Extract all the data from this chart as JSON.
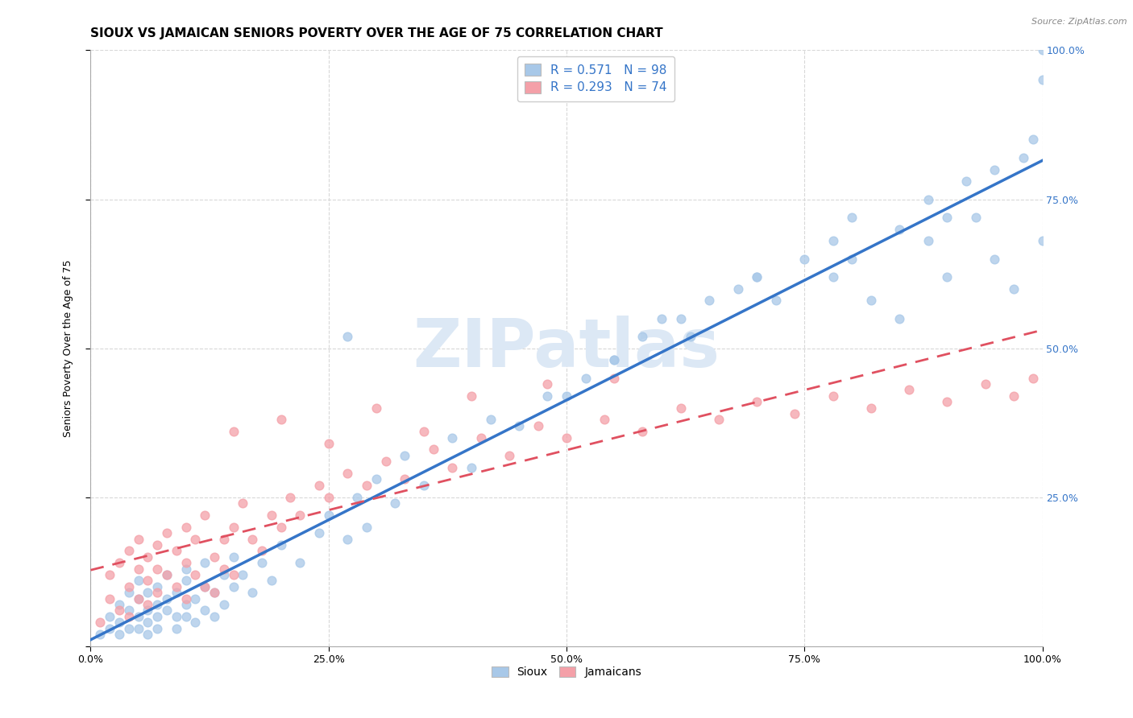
{
  "title": "SIOUX VS JAMAICAN SENIORS POVERTY OVER THE AGE OF 75 CORRELATION CHART",
  "source": "Source: ZipAtlas.com",
  "ylabel": "Seniors Poverty Over the Age of 75",
  "xlim": [
    0.0,
    1.0
  ],
  "ylim": [
    0.0,
    1.0
  ],
  "xtick_labels": [
    "0.0%",
    "25.0%",
    "50.0%",
    "75.0%",
    "100.0%"
  ],
  "xtick_positions": [
    0.0,
    0.25,
    0.5,
    0.75,
    1.0
  ],
  "right_ytick_labels": [
    "100.0%",
    "75.0%",
    "50.0%",
    "25.0%",
    ""
  ],
  "right_ytick_positions": [
    1.0,
    0.75,
    0.5,
    0.25,
    0.0
  ],
  "sioux_color": "#a8c8e8",
  "jamaican_color": "#f4a0a8",
  "sioux_line_color": "#3575c8",
  "jamaican_line_color": "#e05060",
  "watermark_text": "ZIPatlas",
  "watermark_color": "#dce8f5",
  "legend_r_sioux": "R = 0.571",
  "legend_n_sioux": "N = 98",
  "legend_r_jamaican": "R = 0.293",
  "legend_n_jamaican": "N = 74",
  "legend_color_r": "#3575c8",
  "legend_color_n": "#e05060",
  "legend_color_r2": "#e05060",
  "legend_color_n2": "#e05060",
  "sioux_scatter_x": [
    0.01,
    0.02,
    0.02,
    0.03,
    0.03,
    0.03,
    0.04,
    0.04,
    0.04,
    0.05,
    0.05,
    0.05,
    0.05,
    0.06,
    0.06,
    0.06,
    0.06,
    0.07,
    0.07,
    0.07,
    0.07,
    0.08,
    0.08,
    0.08,
    0.09,
    0.09,
    0.09,
    0.1,
    0.1,
    0.1,
    0.1,
    0.11,
    0.11,
    0.12,
    0.12,
    0.12,
    0.13,
    0.13,
    0.14,
    0.14,
    0.15,
    0.15,
    0.16,
    0.17,
    0.18,
    0.19,
    0.2,
    0.22,
    0.24,
    0.25,
    0.27,
    0.28,
    0.29,
    0.3,
    0.32,
    0.33,
    0.35,
    0.38,
    0.4,
    0.27,
    0.45,
    0.5,
    0.52,
    0.55,
    0.58,
    0.62,
    0.65,
    0.68,
    0.7,
    0.75,
    0.78,
    0.8,
    0.82,
    0.85,
    0.88,
    0.9,
    0.92,
    0.95,
    0.97,
    0.98,
    0.99,
    1.0,
    1.0,
    0.6,
    0.7,
    0.8,
    0.85,
    0.9,
    0.95,
    1.0,
    0.42,
    0.48,
    0.55,
    0.63,
    0.72,
    0.78,
    0.88,
    0.93
  ],
  "sioux_scatter_y": [
    0.02,
    0.05,
    0.03,
    0.04,
    0.07,
    0.02,
    0.06,
    0.03,
    0.09,
    0.05,
    0.08,
    0.03,
    0.11,
    0.06,
    0.04,
    0.09,
    0.02,
    0.07,
    0.05,
    0.1,
    0.03,
    0.08,
    0.06,
    0.12,
    0.05,
    0.09,
    0.03,
    0.07,
    0.11,
    0.05,
    0.13,
    0.08,
    0.04,
    0.1,
    0.06,
    0.14,
    0.09,
    0.05,
    0.12,
    0.07,
    0.1,
    0.15,
    0.12,
    0.09,
    0.14,
    0.11,
    0.17,
    0.14,
    0.19,
    0.22,
    0.18,
    0.25,
    0.2,
    0.28,
    0.24,
    0.32,
    0.27,
    0.35,
    0.3,
    0.52,
    0.37,
    0.42,
    0.45,
    0.48,
    0.52,
    0.55,
    0.58,
    0.6,
    0.62,
    0.65,
    0.68,
    0.72,
    0.58,
    0.7,
    0.75,
    0.72,
    0.78,
    0.8,
    0.6,
    0.82,
    0.85,
    0.95,
    1.0,
    0.55,
    0.62,
    0.65,
    0.55,
    0.62,
    0.65,
    0.68,
    0.38,
    0.42,
    0.48,
    0.52,
    0.58,
    0.62,
    0.68,
    0.72
  ],
  "jamaican_scatter_x": [
    0.01,
    0.02,
    0.02,
    0.03,
    0.03,
    0.04,
    0.04,
    0.04,
    0.05,
    0.05,
    0.05,
    0.06,
    0.06,
    0.06,
    0.07,
    0.07,
    0.07,
    0.08,
    0.08,
    0.09,
    0.09,
    0.1,
    0.1,
    0.1,
    0.11,
    0.11,
    0.12,
    0.12,
    0.13,
    0.13,
    0.14,
    0.14,
    0.15,
    0.15,
    0.16,
    0.17,
    0.18,
    0.19,
    0.2,
    0.21,
    0.22,
    0.24,
    0.25,
    0.27,
    0.29,
    0.31,
    0.33,
    0.36,
    0.38,
    0.41,
    0.44,
    0.47,
    0.5,
    0.54,
    0.58,
    0.62,
    0.66,
    0.7,
    0.74,
    0.78,
    0.82,
    0.86,
    0.9,
    0.94,
    0.97,
    0.99,
    0.15,
    0.2,
    0.25,
    0.3,
    0.35,
    0.4,
    0.48,
    0.55
  ],
  "jamaican_scatter_y": [
    0.04,
    0.08,
    0.12,
    0.06,
    0.14,
    0.1,
    0.05,
    0.16,
    0.08,
    0.13,
    0.18,
    0.07,
    0.15,
    0.11,
    0.09,
    0.17,
    0.13,
    0.12,
    0.19,
    0.1,
    0.16,
    0.14,
    0.08,
    0.2,
    0.12,
    0.18,
    0.1,
    0.22,
    0.15,
    0.09,
    0.18,
    0.13,
    0.2,
    0.12,
    0.24,
    0.18,
    0.16,
    0.22,
    0.2,
    0.25,
    0.22,
    0.27,
    0.25,
    0.29,
    0.27,
    0.31,
    0.28,
    0.33,
    0.3,
    0.35,
    0.32,
    0.37,
    0.35,
    0.38,
    0.36,
    0.4,
    0.38,
    0.41,
    0.39,
    0.42,
    0.4,
    0.43,
    0.41,
    0.44,
    0.42,
    0.45,
    0.36,
    0.38,
    0.34,
    0.4,
    0.36,
    0.42,
    0.44,
    0.45
  ],
  "background_color": "#ffffff",
  "grid_color": "#d8d8d8",
  "title_fontsize": 11,
  "axis_label_fontsize": 9,
  "tick_fontsize": 9,
  "watermark_fontsize": 60
}
